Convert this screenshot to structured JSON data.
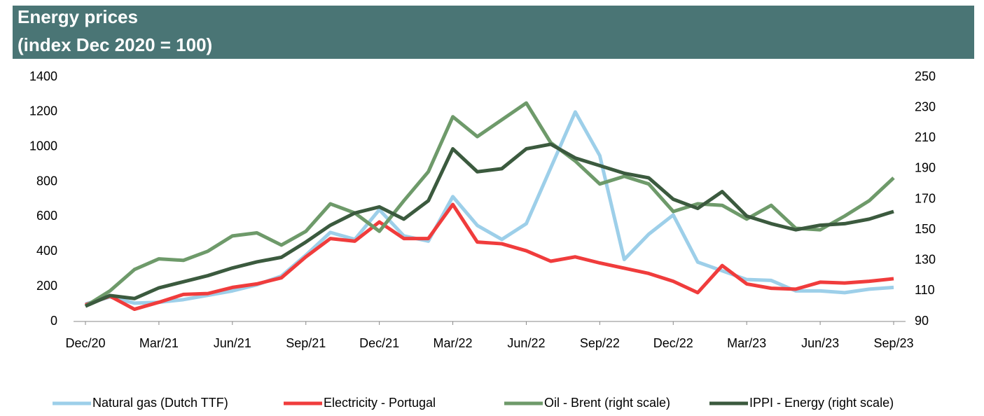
{
  "chart_data": {
    "type": "line",
    "title": "Energy prices",
    "subtitle": "(index Dec 2020 = 100)",
    "categories": [
      "Dec/20",
      null,
      null,
      "Mar/21",
      null,
      null,
      "Jun/21",
      null,
      null,
      "Sep/21",
      null,
      null,
      "Dec/21",
      null,
      null,
      "Mar/22",
      null,
      null,
      "Jun/22",
      null,
      null,
      "Sep/22",
      null,
      null,
      "Dec/22",
      null,
      null,
      "Mar/23",
      null,
      null,
      "Jun/23",
      null,
      null,
      "Sep/23"
    ],
    "series": [
      {
        "name": "Natural gas (Dutch TTF)",
        "color": "#9dcfe9",
        "values": [
          100,
          140,
          105,
          110,
          125,
          150,
          175,
          210,
          260,
          380,
          510,
          470,
          640,
          490,
          460,
          715,
          550,
          470,
          560,
          880,
          1200,
          950,
          355,
          500,
          610,
          340,
          290,
          240,
          235,
          175,
          175,
          165,
          185,
          195
        ]
      },
      {
        "name": "Electricity - Portugal",
        "color": "#f03c3c",
        "values": [
          95,
          145,
          70,
          110,
          155,
          160,
          195,
          215,
          250,
          370,
          475,
          460,
          570,
          475,
          475,
          670,
          455,
          445,
          405,
          345,
          370,
          335,
          305,
          275,
          230,
          165,
          320,
          215,
          190,
          185,
          225,
          220,
          230,
          245
        ]
      },
      {
        "name": "Oil - Brent (right scale)",
        "color": "#6e9a6a",
        "axis": "y2",
        "values": [
          100,
          110,
          124,
          131,
          130,
          136,
          146,
          148,
          140,
          149,
          167,
          161,
          149,
          169,
          188,
          224,
          211,
          222,
          233,
          207,
          195,
          180,
          185,
          180,
          162,
          167,
          166,
          157,
          166,
          151,
          150,
          159,
          169,
          184
        ]
      },
      {
        "name": "IPPI - Energy (right scale)",
        "color": "#3b5a3e",
        "axis": "y2",
        "values": [
          100,
          107,
          105,
          112,
          116,
          120,
          125,
          129,
          132,
          142,
          153,
          161,
          165,
          157,
          169,
          203,
          188,
          190,
          203,
          206,
          197,
          192,
          187,
          184,
          170,
          164,
          175,
          159,
          154,
          150,
          153,
          154,
          157,
          162
        ]
      }
    ],
    "ylim": [
      0,
      1400
    ],
    "yticks": [
      0,
      200,
      400,
      600,
      800,
      1000,
      1200,
      1400
    ],
    "y2lim": [
      90,
      250
    ],
    "y2ticks": [
      90,
      110,
      130,
      150,
      170,
      190,
      210,
      230,
      250
    ],
    "legend": "bottom"
  }
}
